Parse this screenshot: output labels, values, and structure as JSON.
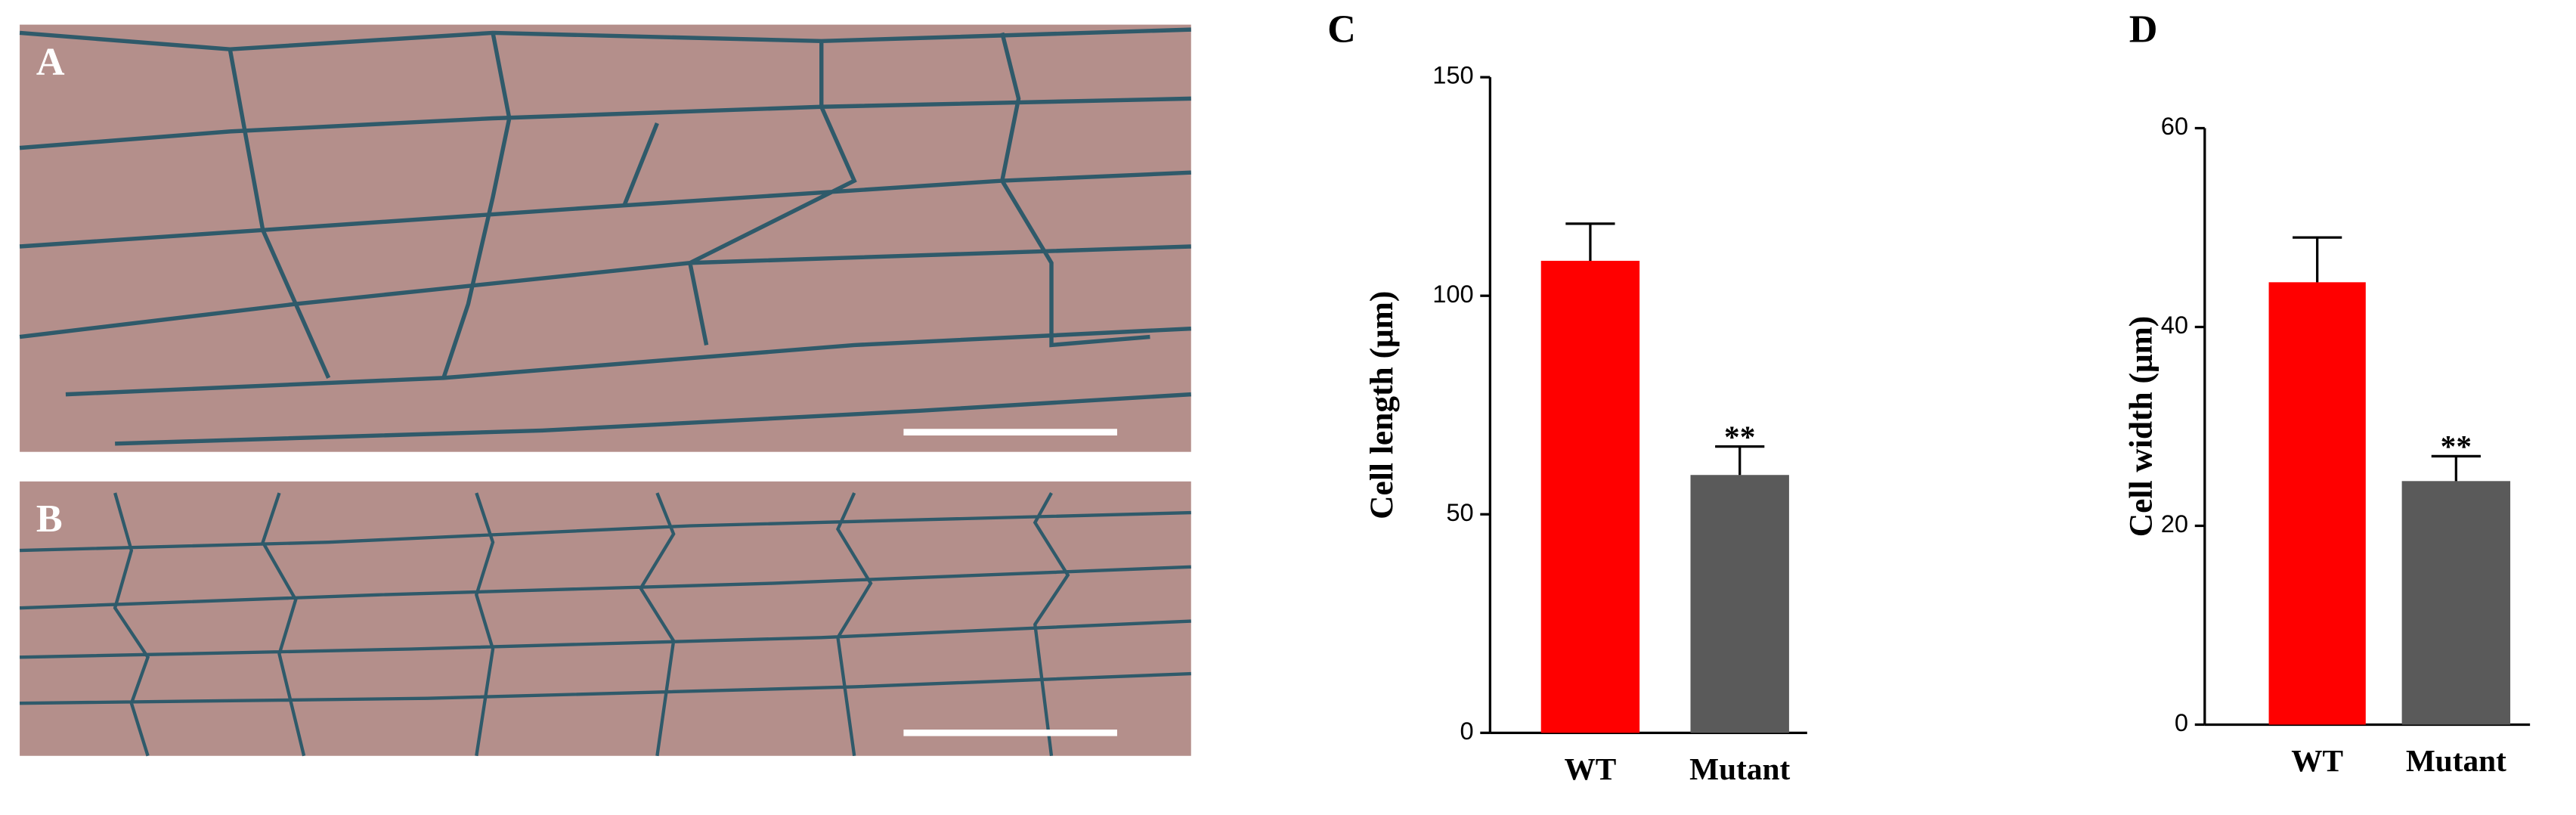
{
  "panels": [
    {
      "label": "A"
    },
    {
      "label": "B"
    }
  ],
  "chart_data": [
    {
      "type": "bar",
      "panel": "C",
      "y_label": "Cell length (μm)",
      "categories": [
        "WT",
        "Mutant"
      ],
      "values": [
        108,
        59
      ],
      "errors": [
        8.5,
        6.5
      ],
      "colors": [
        "#ff0000",
        "#5a5a5a"
      ],
      "ylim": [
        0,
        150
      ],
      "yticks": [
        0,
        50,
        100,
        150
      ],
      "annotations": [
        {
          "text": "**",
          "category": "Mutant"
        }
      ]
    },
    {
      "type": "bar",
      "panel": "D",
      "y_label": "Cell width (μm)",
      "categories": [
        "WT",
        "Mutant"
      ],
      "values": [
        44.5,
        24.5
      ],
      "errors": [
        4.5,
        2.5
      ],
      "colors": [
        "#ff0000",
        "#5a5a5a"
      ],
      "ylim": [
        0,
        60
      ],
      "yticks": [
        0,
        20,
        40,
        60
      ],
      "annotations": [
        {
          "text": "**",
          "category": "Mutant"
        }
      ]
    }
  ]
}
